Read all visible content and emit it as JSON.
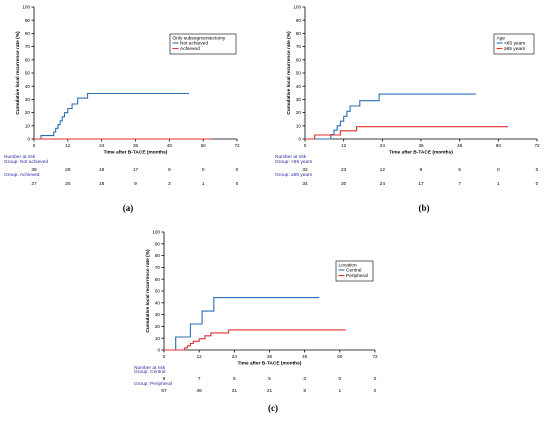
{
  "chart_data": [
    {
      "type": "line",
      "panel_label": "(a)",
      "xlabel": "Time after B-TACE (months)",
      "ylabel": "Cumulative local recurrence rate (%)",
      "xlim": [
        0,
        72
      ],
      "ylim": [
        0,
        100
      ],
      "xticks": [
        "0",
        "12",
        "24",
        "36",
        "48",
        "60",
        "72"
      ],
      "yticks": [
        "0",
        "10",
        "20",
        "30",
        "40",
        "50",
        "60",
        "70",
        "80",
        "90",
        "100"
      ],
      "legend_title": "Only subsegmentectomy",
      "legend_position": "top-right",
      "series": [
        {
          "name": "Not achieved",
          "color": "#2a6fb5",
          "x": [
            0,
            2.5,
            2.5,
            7,
            7,
            7.7,
            7.7,
            8.5,
            8.5,
            9.3,
            9.3,
            10,
            10,
            10.8,
            10.8,
            12,
            12,
            13.5,
            13.5,
            15.5,
            15.5,
            19,
            19,
            55
          ],
          "y": [
            0,
            0,
            2.6,
            2.6,
            5.3,
            5.3,
            8.1,
            8.1,
            10.9,
            10.9,
            13.8,
            13.8,
            16.8,
            16.8,
            19.9,
            19.9,
            23.1,
            23.1,
            26.5,
            26.5,
            31,
            31,
            34.5,
            34.5
          ]
        },
        {
          "name": "Achieved",
          "color": "#e03030",
          "x": [
            0,
            63
          ],
          "y": [
            0,
            0
          ]
        }
      ],
      "risk_table": {
        "title": "Number at risk",
        "times": [
          "0",
          "12",
          "24",
          "36",
          "48",
          "60",
          "72"
        ],
        "groups": [
          {
            "label": "Group: Not achieved",
            "counts": [
              "39",
              "28",
              "18",
              "17",
              "9",
              "0",
              "0"
            ]
          },
          {
            "label": "Group: Achieved",
            "counts": [
              "27",
              "25",
              "18",
              "9",
              "3",
              "1",
              "0"
            ]
          }
        ]
      }
    },
    {
      "type": "line",
      "panel_label": "(b)",
      "xlabel": "Time after B-TACE (months)",
      "ylabel": "Cumulative local recurrence rate (%)",
      "xlim": [
        0,
        72
      ],
      "ylim": [
        0,
        100
      ],
      "xticks": [
        "0",
        "12",
        "24",
        "36",
        "48",
        "60",
        "72"
      ],
      "yticks": [
        "0",
        "10",
        "20",
        "30",
        "40",
        "50",
        "60",
        "70",
        "80",
        "90",
        "100"
      ],
      "legend_title": "Age",
      "legend_position": "top-right",
      "series": [
        {
          "name": "<65 years",
          "color": "#2a6fb5",
          "x": [
            0,
            8,
            8,
            9,
            9,
            10,
            10,
            11,
            11,
            12,
            12,
            13,
            13,
            14,
            14,
            17,
            17,
            23,
            23,
            53
          ],
          "y": [
            0,
            0,
            3.3,
            3.3,
            6.7,
            6.7,
            10,
            10,
            13.5,
            13.5,
            17.2,
            17.2,
            21,
            21,
            25,
            25,
            29,
            29,
            34,
            34
          ]
        },
        {
          "name": "≥65 years",
          "color": "#e03030",
          "x": [
            0,
            3,
            3,
            11,
            11,
            16,
            16,
            63
          ],
          "y": [
            0,
            0,
            3,
            3,
            6.2,
            6.2,
            9.3,
            9.3
          ]
        }
      ],
      "risk_table": {
        "title": "Number at risk",
        "times": [
          "0",
          "12",
          "24",
          "36",
          "48",
          "60",
          "72"
        ],
        "groups": [
          {
            "label": "Group: <65 years",
            "counts": [
              "32",
              "23",
              "12",
              "9",
              "5",
              "0",
              "0"
            ]
          },
          {
            "label": "Group: ≥65 years",
            "counts": [
              "34",
              "30",
              "24",
              "17",
              "7",
              "1",
              "0"
            ]
          }
        ]
      }
    },
    {
      "type": "line",
      "panel_label": "(c)",
      "xlabel": "Time after B-TACE (months)",
      "ylabel": "Cumulative local recurrence rate (%)",
      "xlim": [
        0,
        72
      ],
      "ylim": [
        0,
        100
      ],
      "xticks": [
        "0",
        "12",
        "24",
        "36",
        "48",
        "60",
        "72"
      ],
      "yticks": [
        "0",
        "10",
        "20",
        "30",
        "40",
        "50",
        "60",
        "70",
        "80",
        "90",
        "100"
      ],
      "legend_title": "Location",
      "legend_position": "top-right",
      "series": [
        {
          "name": "Central",
          "color": "#2a6fb5",
          "x": [
            0,
            4,
            4,
            9,
            9,
            13,
            13,
            15,
            15,
            17,
            17,
            53
          ],
          "y": [
            0,
            0,
            11,
            11,
            22,
            22,
            33,
            33,
            33,
            33,
            44.4,
            44.4
          ]
        },
        {
          "name": "Peripheral",
          "color": "#e03030",
          "x": [
            0,
            7,
            7,
            8,
            8,
            9,
            9,
            10,
            10,
            12,
            12,
            14,
            14,
            16,
            16,
            22,
            22,
            62
          ],
          "y": [
            0,
            0,
            1.8,
            1.8,
            3.6,
            3.6,
            5.5,
            5.5,
            7.4,
            7.4,
            9.5,
            9.5,
            12,
            12,
            14.5,
            14.5,
            17,
            17
          ]
        }
      ],
      "risk_table": {
        "title": "Number at risk",
        "times": [
          "0",
          "12",
          "24",
          "36",
          "48",
          "60",
          "72"
        ],
        "groups": [
          {
            "label": "Group: Central",
            "counts": [
              "9",
              "7",
              "5",
              "5",
              "3",
              "0",
              "0"
            ]
          },
          {
            "label": "Group: Peripheral",
            "counts": [
              "57",
              "46",
              "31",
              "21",
              "9",
              "1",
              "0"
            ]
          }
        ]
      }
    }
  ]
}
